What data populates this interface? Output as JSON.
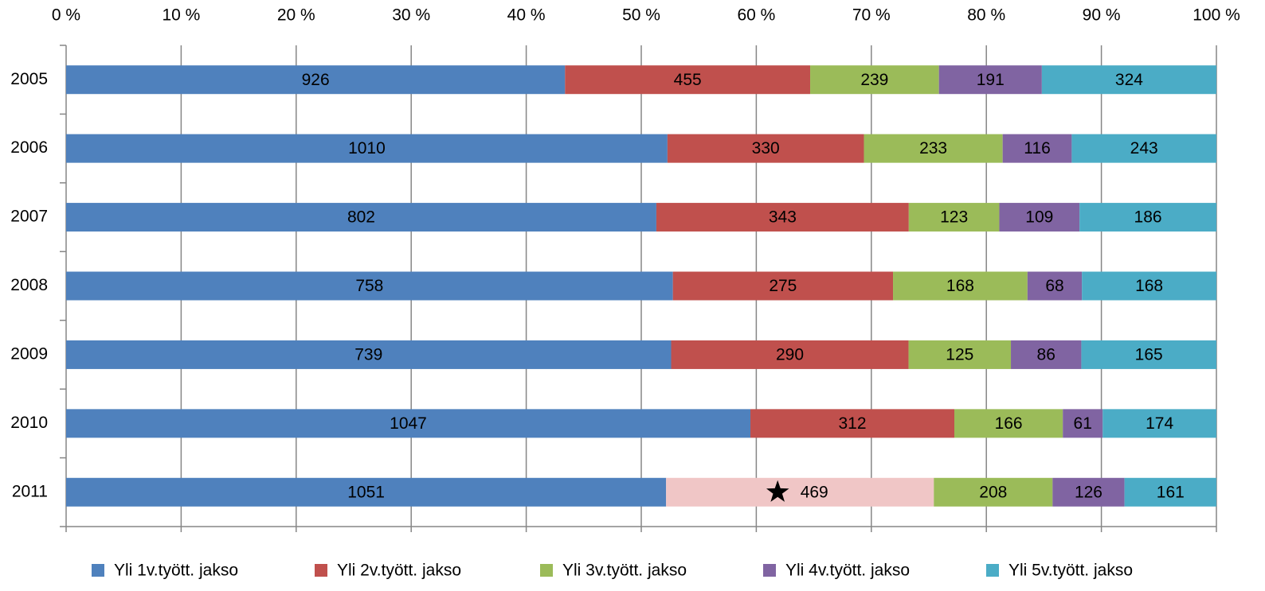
{
  "chart_data": {
    "type": "stacked_bar_100",
    "orientation": "horizontal",
    "categories": [
      "2005",
      "2006",
      "2007",
      "2008",
      "2009",
      "2010",
      "2011"
    ],
    "series": [
      {
        "name": "Yli 1v.tyött. jakso",
        "color": "#4f81bd",
        "values": [
          926,
          1010,
          802,
          758,
          739,
          1047,
          1051
        ]
      },
      {
        "name": "Yli 2v.tyött. jakso",
        "color": "#c0504d",
        "values": [
          455,
          330,
          343,
          275,
          290,
          312,
          469
        ],
        "highlight": {
          "index": 6,
          "color": "#f0c6c6"
        }
      },
      {
        "name": "Yli 3v.tyött. jakso",
        "color": "#9bbb59",
        "values": [
          239,
          233,
          123,
          168,
          125,
          166,
          208
        ]
      },
      {
        "name": "Yli 4v.tyött. jakso",
        "color": "#8064a2",
        "values": [
          191,
          116,
          109,
          68,
          86,
          61,
          126
        ]
      },
      {
        "name": "Yli 5v.tyött. jakso",
        "color": "#4bacc6",
        "values": [
          324,
          243,
          186,
          168,
          165,
          174,
          161
        ]
      }
    ],
    "xlim": [
      0,
      100
    ],
    "xticks": [
      {
        "value": 0,
        "label": "0 %"
      },
      {
        "value": 10,
        "label": "10 %"
      },
      {
        "value": 20,
        "label": "20 %"
      },
      {
        "value": 30,
        "label": "30 %"
      },
      {
        "value": 40,
        "label": "40 %"
      },
      {
        "value": 50,
        "label": "50 %"
      },
      {
        "value": 60,
        "label": "60 %"
      },
      {
        "value": 70,
        "label": "70 %"
      },
      {
        "value": 80,
        "label": "80 %"
      },
      {
        "value": 90,
        "label": "90 %"
      },
      {
        "value": 100,
        "label": "100 %"
      }
    ],
    "grid": true,
    "legend": "bottom"
  }
}
